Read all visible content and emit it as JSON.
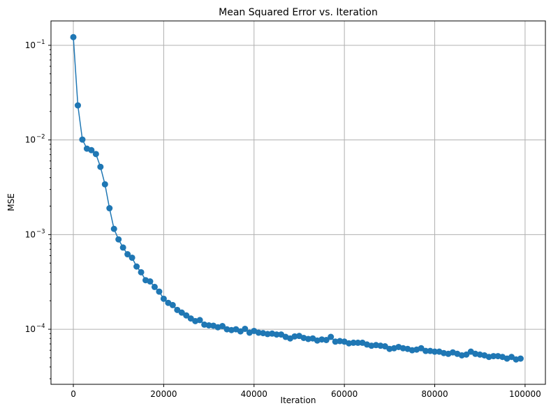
{
  "chart_data": {
    "type": "line",
    "title": "Mean Squared Error vs. Iteration",
    "xlabel": "Iteration",
    "ylabel": "MSE",
    "xlim": [
      -4950,
      104500
    ],
    "ylim": [
      2.62e-05,
      0.181
    ],
    "yscale": "log",
    "grid": true,
    "marker": "circle",
    "color": "#1f77b4",
    "xticks": [
      0,
      20000,
      40000,
      60000,
      80000,
      100000
    ],
    "xtick_labels": [
      "0",
      "20000",
      "40000",
      "60000",
      "80000",
      "100000"
    ],
    "yticks": [
      0.1,
      0.01,
      0.001,
      0.0001
    ],
    "ytick_labels": [
      "10^-1",
      "10^-2",
      "10^-3",
      "10^-4"
    ],
    "x_start": 0,
    "x_step": 1000,
    "values": [
      0.122,
      0.0232,
      0.0101,
      0.0081,
      0.0078,
      0.0071,
      0.0052,
      0.0034,
      0.0019,
      0.00115,
      0.00089,
      0.00073,
      0.00062,
      0.00057,
      0.00046,
      0.0004,
      0.00033,
      0.00032,
      0.00028,
      0.00025,
      0.00021,
      0.00019,
      0.00018,
      0.00016,
      0.00015,
      0.00014,
      0.00013,
      0.000122,
      0.000125,
      0.000112,
      0.00011,
      0.000109,
      0.000105,
      0.000108,
      0.0001,
      9.8e-05,
      0.0001,
      9.5e-05,
      0.000101,
      9.2e-05,
      9.6e-05,
      9.2e-05,
      9.1e-05,
      8.9e-05,
      9e-05,
      8.8e-05,
      8.8e-05,
      8.3e-05,
      8e-05,
      8.4e-05,
      8.5e-05,
      8.1e-05,
      7.9e-05,
      8e-05,
      7.6e-05,
      7.8e-05,
      7.7e-05,
      8.3e-05,
      7.4e-05,
      7.5e-05,
      7.4e-05,
      7.1e-05,
      7.2e-05,
      7.2e-05,
      7.2e-05,
      6.9e-05,
      6.7e-05,
      6.8e-05,
      6.7e-05,
      6.6e-05,
      6.2e-05,
      6.3e-05,
      6.5e-05,
      6.3e-05,
      6.2e-05,
      6e-05,
      6.1e-05,
      6.3e-05,
      5.9e-05,
      5.9e-05,
      5.8e-05,
      5.8e-05,
      5.6e-05,
      5.5e-05,
      5.7e-05,
      5.5e-05,
      5.3e-05,
      5.4e-05,
      5.8e-05,
      5.5e-05,
      5.4e-05,
      5.3e-05,
      5.1e-05,
      5.2e-05,
      5.2e-05,
      5.1e-05,
      4.9e-05,
      5.1e-05,
      4.8e-05,
      4.9e-05
    ]
  }
}
